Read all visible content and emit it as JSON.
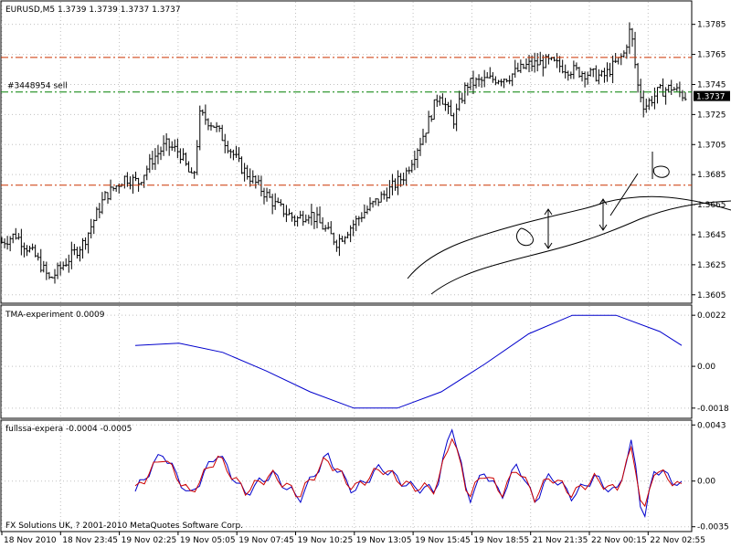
{
  "chart_data": [
    {
      "type": "bar",
      "style": "ohlc",
      "symbol_timeframe": "EURUSD,M5",
      "ohlc_header": [
        "1.3739",
        "1.3739",
        "1.3737",
        "1.3737"
      ],
      "ylim": [
        1.36,
        1.38
      ],
      "y_ticks": [
        "1.3785",
        "1.3765",
        "1.3745",
        "1.3725",
        "1.3705",
        "1.3685",
        "1.3665",
        "1.3645",
        "1.3625",
        "1.3605"
      ],
      "current_price": "1.3737",
      "order_label": "#3448954 sell",
      "order_level": 1.374,
      "stop_level": 1.3763,
      "take_level": 1.3678,
      "grid": true,
      "colors": {
        "bars": "#000000",
        "order_line": "#008000",
        "sl_tp_lines": "#cc3300",
        "drawings": "#000000"
      },
      "price_path": [
        [
          0,
          1.364
        ],
        [
          0.02,
          1.3645
        ],
        [
          0.05,
          1.363
        ],
        [
          0.07,
          1.3615
        ],
        [
          0.09,
          1.3625
        ],
        [
          0.12,
          1.364
        ],
        [
          0.15,
          1.367
        ],
        [
          0.18,
          1.3683
        ],
        [
          0.2,
          1.368
        ],
        [
          0.22,
          1.3695
        ],
        [
          0.24,
          1.3705
        ],
        [
          0.26,
          1.37
        ],
        [
          0.28,
          1.368
        ],
        [
          0.29,
          1.3725
        ],
        [
          0.31,
          1.3718
        ],
        [
          0.33,
          1.3705
        ],
        [
          0.35,
          1.369
        ],
        [
          0.37,
          1.368
        ],
        [
          0.4,
          1.3665
        ],
        [
          0.43,
          1.3655
        ],
        [
          0.45,
          1.366
        ],
        [
          0.47,
          1.365
        ],
        [
          0.49,
          1.364
        ],
        [
          0.51,
          1.365
        ],
        [
          0.53,
          1.366
        ],
        [
          0.56,
          1.3672
        ],
        [
          0.59,
          1.3685
        ],
        [
          0.62,
          1.3715
        ],
        [
          0.64,
          1.374
        ],
        [
          0.66,
          1.372
        ],
        [
          0.68,
          1.3745
        ],
        [
          0.71,
          1.3748
        ],
        [
          0.74,
          1.375
        ],
        [
          0.77,
          1.3758
        ],
        [
          0.8,
          1.376
        ],
        [
          0.83,
          1.3755
        ],
        [
          0.86,
          1.3752
        ],
        [
          0.88,
          1.375
        ],
        [
          0.91,
          1.3765
        ],
        [
          0.92,
          1.3783
        ],
        [
          0.93,
          1.3745
        ],
        [
          0.94,
          1.373
        ],
        [
          0.96,
          1.374
        ],
        [
          0.98,
          1.3743
        ],
        [
          1.0,
          1.3737
        ]
      ]
    },
    {
      "type": "line",
      "label": "TMA-experiment 0.0009",
      "ylim": [
        -0.0022,
        0.0026
      ],
      "y_ticks": [
        "0.0022",
        "0.00",
        "-0.0018"
      ],
      "colors": {
        "line": "#0000cc"
      },
      "series": [
        {
          "x": [
            0,
            0.08,
            0.16,
            0.24,
            0.32,
            0.4,
            0.48,
            0.56,
            0.64,
            0.72,
            0.8,
            0.88,
            0.96,
            1.0
          ],
          "values": [
            0.0009,
            0.001,
            0.0006,
            -0.0002,
            -0.0011,
            -0.0018,
            -0.0018,
            -0.0011,
            0.0001,
            0.0014,
            0.0022,
            0.0022,
            0.0015,
            0.0009
          ]
        }
      ]
    },
    {
      "type": "line",
      "label": "fullssa-expera -0.0004 -0.0005",
      "ylim": [
        -0.0038,
        0.0046
      ],
      "y_ticks": [
        "0.0043",
        "0.00",
        "-0.0035"
      ],
      "colors": {
        "blue": "#0000cc",
        "red": "#cc0000"
      },
      "x": [
        0,
        0.05,
        0.1,
        0.15,
        0.2,
        0.25,
        0.3,
        0.35,
        0.4,
        0.45,
        0.5,
        0.55,
        0.58,
        0.61,
        0.64,
        0.67,
        0.7,
        0.73,
        0.76,
        0.8,
        0.84,
        0.88,
        0.91,
        0.93,
        0.95,
        0.98,
        1.0
      ],
      "series": [
        {
          "name": "blue",
          "values": [
            -0.0008,
            0.0022,
            -0.0012,
            0.0022,
            -0.001,
            0.0006,
            -0.0014,
            0.002,
            -0.0008,
            0.0011,
            -0.0004,
            -0.0007,
            0.0043,
            -0.0015,
            0.0008,
            -0.0012,
            0.0014,
            -0.0016,
            0.0005,
            -0.0012,
            0.0003,
            -0.001,
            0.0031,
            -0.0034,
            0.001,
            0.0002,
            -0.0004
          ]
        },
        {
          "name": "red",
          "values": [
            -0.0007,
            0.0019,
            -0.001,
            0.0019,
            -0.0008,
            0.0005,
            -0.0011,
            0.0017,
            -0.0006,
            0.001,
            -0.0004,
            -0.0006,
            0.0036,
            -0.0012,
            0.0007,
            -0.001,
            0.0011,
            -0.0013,
            0.0004,
            -0.001,
            0.0002,
            -0.0008,
            0.0026,
            -0.0028,
            0.0009,
            0.0001,
            -0.0005
          ]
        }
      ]
    }
  ],
  "x_axis_labels": [
    "18 Nov 2010",
    "18 Nov 23:45",
    "19 Nov 02:25",
    "19 Nov 05:05",
    "19 Nov 07:45",
    "19 Nov 10:25",
    "19 Nov 13:05",
    "19 Nov 15:45",
    "19 Nov 18:55",
    "21 Nov 21:35",
    "22 Nov 00:15",
    "22 Nov 02:55"
  ],
  "copyright": "FX Solutions UK, ? 2001-2010 MetaQuotes Software Corp."
}
